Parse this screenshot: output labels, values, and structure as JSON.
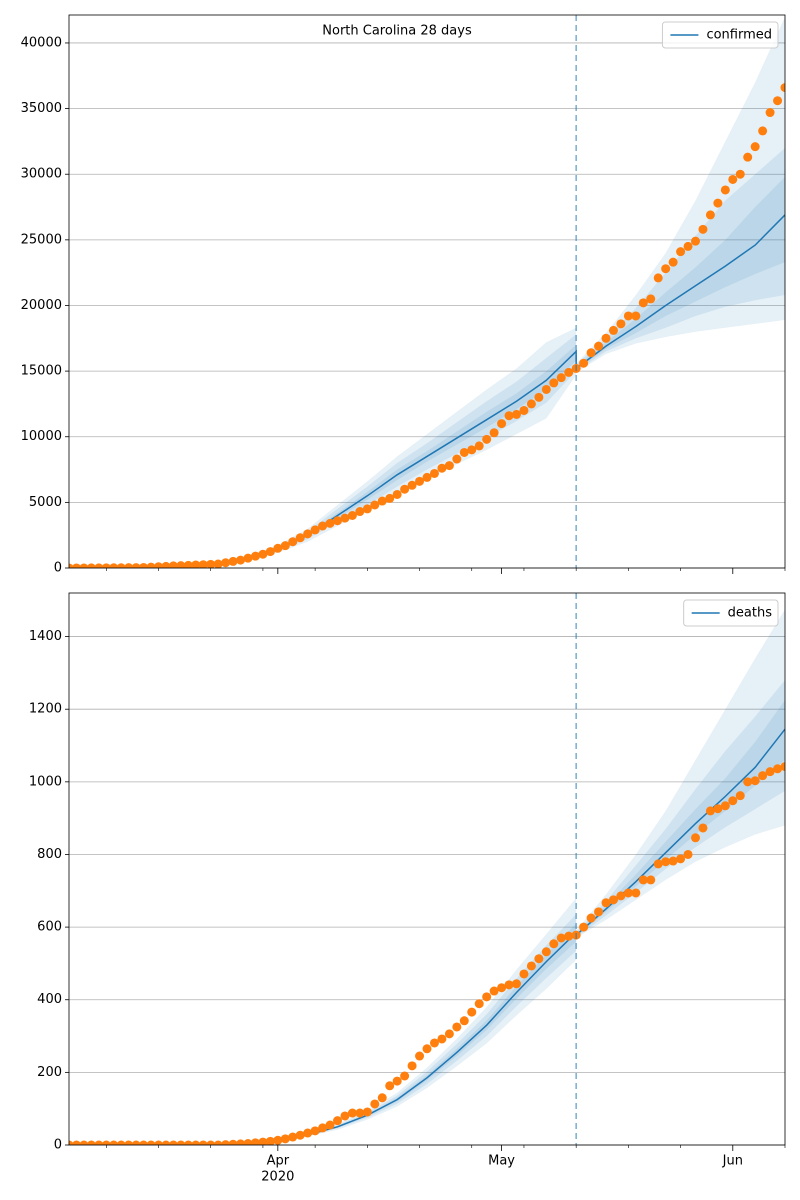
{
  "chart_data": [
    {
      "type": "line",
      "title": "North Carolina 28 days",
      "legend": "upper right",
      "grid": true,
      "xlim": [
        0,
        96
      ],
      "ylim": [
        0,
        42130
      ],
      "yticks": [
        0,
        5000,
        10000,
        15000,
        20000,
        25000,
        30000,
        35000,
        40000
      ],
      "vline": 68,
      "series": [
        {
          "name": "confirmed",
          "color": "#1f77b4",
          "x": [
            0,
            4,
            8,
            12,
            16,
            20,
            24,
            28,
            32,
            36,
            40,
            44,
            48,
            52,
            56,
            60,
            64,
            68,
            68,
            72,
            76,
            80,
            84,
            88,
            92,
            96
          ],
          "values": [
            2,
            5,
            20,
            60,
            150,
            350,
            760,
            1450,
            2500,
            4000,
            5500,
            7100,
            8500,
            9900,
            11300,
            12700,
            14300,
            16500,
            15200,
            16900,
            18400,
            20000,
            21500,
            23000,
            24600,
            26900
          ],
          "bands": [
            {
              "lower": [
                2,
                4,
                16,
                48,
                120,
                280,
                610,
                1160,
                2000,
                3200,
                4400,
                5700,
                6800,
                7900,
                9000,
                10200,
                11400,
                14700,
                14900,
                16300,
                17100,
                17600,
                18000,
                18300,
                18600,
                18900
              ],
              "upper": [
                2,
                6,
                24,
                72,
                180,
                420,
                910,
                1740,
                3000,
                4800,
                6600,
                8500,
                10200,
                11900,
                13600,
                15200,
                17200,
                18300,
                15600,
                17900,
                20800,
                24000,
                28000,
                32500,
                37000,
                42000
              ]
            },
            {
              "lower": [
                2,
                4,
                18,
                53,
                132,
                310,
                670,
                1280,
                2200,
                3500,
                4800,
                6200,
                7500,
                8700,
                9900,
                11200,
                12600,
                15000,
                15000,
                16500,
                17500,
                18300,
                19200,
                19900,
                20400,
                20800
              ],
              "upper": [
                2,
                6,
                22,
                67,
                168,
                390,
                850,
                1620,
                2800,
                4500,
                6200,
                8000,
                9500,
                11100,
                12700,
                14200,
                16000,
                17800,
                15500,
                17500,
                19800,
                22500,
                25300,
                28000,
                30000,
                32000
              ]
            },
            {
              "lower": [
                2,
                5,
                19,
                57,
                143,
                330,
                720,
                1380,
                2380,
                3800,
                5200,
                6700,
                8100,
                9400,
                10700,
                12100,
                13600,
                15800,
                15100,
                16700,
                17900,
                19200,
                20300,
                21400,
                22400,
                23300
              ],
              "upper": [
                2,
                5,
                21,
                63,
                158,
                370,
                800,
                1520,
                2630,
                4200,
                5800,
                7500,
                8900,
                10400,
                11900,
                13300,
                15000,
                17000,
                15350,
                17200,
                19000,
                21000,
                22900,
                25000,
                27500,
                29800
              ]
            }
          ]
        }
      ],
      "observed": {
        "color": "#ff7f0e",
        "x": [
          0,
          1,
          2,
          3,
          4,
          5,
          6,
          7,
          8,
          9,
          10,
          11,
          12,
          13,
          14,
          15,
          16,
          17,
          18,
          19,
          20,
          21,
          22,
          23,
          24,
          25,
          26,
          27,
          28,
          29,
          30,
          31,
          32,
          33,
          34,
          35,
          36,
          37,
          38,
          39,
          40,
          41,
          42,
          43,
          44,
          45,
          46,
          47,
          48,
          49,
          50,
          51,
          52,
          53,
          54,
          55,
          56,
          57,
          58,
          59,
          60,
          61,
          62,
          63,
          64,
          65,
          66,
          67,
          68,
          69,
          70,
          71,
          72,
          73,
          74,
          75,
          76,
          77,
          78,
          79,
          80,
          81,
          82,
          83,
          84,
          85,
          86,
          87,
          88,
          89,
          90,
          91,
          92,
          93,
          94,
          95,
          96
        ],
        "values": [
          2,
          2,
          3,
          7,
          8,
          12,
          15,
          17,
          24,
          32,
          40,
          63,
          92,
          123,
          161,
          180,
          200,
          230,
          250,
          280,
          300,
          400,
          500,
          600,
          750,
          900,
          1050,
          1250,
          1500,
          1700,
          2000,
          2300,
          2600,
          2900,
          3200,
          3400,
          3600,
          3800,
          4000,
          4300,
          4500,
          4800,
          5100,
          5300,
          5600,
          6000,
          6300,
          6600,
          6900,
          7200,
          7600,
          7800,
          8300,
          8800,
          9000,
          9300,
          9800,
          10300,
          11000,
          11600,
          11700,
          12000,
          12500,
          13000,
          13600,
          14100,
          14500,
          14900,
          15200,
          15600,
          16400,
          16900,
          17500,
          18100,
          18600,
          19200,
          19200,
          20200,
          20500,
          22100,
          22800,
          23300,
          24100,
          24500,
          24900,
          25800,
          26900,
          27800,
          28800,
          29600,
          30000,
          31300,
          32100,
          33300,
          34700,
          35600,
          36600
        ]
      }
    },
    {
      "type": "line",
      "legend": "upper right",
      "grid": true,
      "xlim": [
        0,
        96
      ],
      "ylim": [
        0,
        1520
      ],
      "yticks": [
        0,
        200,
        400,
        600,
        800,
        1000,
        1200,
        1400
      ],
      "vline": 68,
      "xticks": [
        {
          "value": 28,
          "label": "Apr",
          "sublabel": "2020"
        },
        {
          "value": 58,
          "label": "May"
        },
        {
          "value": 89,
          "label": "Jun"
        }
      ],
      "xminorticks": [
        5,
        12,
        19,
        26,
        33,
        40,
        47,
        54,
        61,
        68,
        75,
        82,
        96
      ],
      "series": [
        {
          "name": "deaths",
          "color": "#1f77b4",
          "x": [
            0,
            4,
            8,
            12,
            16,
            20,
            24,
            28,
            32,
            36,
            40,
            44,
            48,
            52,
            56,
            60,
            64,
            68,
            68,
            72,
            76,
            80,
            84,
            88,
            92,
            96
          ],
          "values": [
            0,
            0,
            0,
            0,
            0,
            1,
            4,
            12,
            28,
            50,
            82,
            125,
            185,
            255,
            330,
            420,
            505,
            585,
            578,
            650,
            725,
            805,
            885,
            960,
            1040,
            1145
          ],
          "bands": [
            {
              "lower": [
                0,
                0,
                0,
                0,
                0,
                1,
                3,
                10,
                24,
                42,
                70,
                106,
                157,
                217,
                280,
                357,
                430,
                510,
                570,
                620,
                675,
                730,
                780,
                820,
                855,
                880
              ],
              "upper": [
                0,
                0,
                0,
                0,
                0,
                1,
                5,
                14,
                32,
                58,
                94,
                144,
                213,
                293,
                380,
                483,
                581,
                680,
                590,
                690,
                800,
                920,
                1060,
                1200,
                1340,
                1475
              ]
            },
            {
              "lower": [
                0,
                0,
                0,
                0,
                0,
                1,
                4,
                11,
                25,
                46,
                75,
                114,
                168,
                232,
                300,
                382,
                460,
                535,
                572,
                632,
                695,
                760,
                820,
                875,
                925,
                975
              ],
              "upper": [
                0,
                0,
                0,
                0,
                0,
                1,
                4,
                13,
                31,
                55,
                89,
                136,
                202,
                278,
                360,
                458,
                550,
                635,
                585,
                672,
                770,
                870,
                980,
                1085,
                1180,
                1280
              ]
            },
            {
              "lower": [
                0,
                0,
                0,
                0,
                0,
                1,
                4,
                12,
                27,
                48,
                79,
                120,
                178,
                245,
                317,
                403,
                485,
                560,
                575,
                642,
                712,
                785,
                855,
                920,
                990,
                1060
              ],
              "upper": [
                0,
                0,
                0,
                0,
                0,
                1,
                4,
                12,
                29,
                52,
                85,
                130,
                192,
                265,
                343,
                437,
                525,
                610,
                582,
                660,
                745,
                835,
                925,
                1010,
                1110,
                1225
              ]
            }
          ]
        }
      ],
      "observed": {
        "color": "#ff7f0e",
        "x": [
          0,
          1,
          2,
          3,
          4,
          5,
          6,
          7,
          8,
          9,
          10,
          11,
          12,
          13,
          14,
          15,
          16,
          17,
          18,
          19,
          20,
          21,
          22,
          23,
          24,
          25,
          26,
          27,
          28,
          29,
          30,
          31,
          32,
          33,
          34,
          35,
          36,
          37,
          38,
          39,
          40,
          41,
          42,
          43,
          44,
          45,
          46,
          47,
          48,
          49,
          50,
          51,
          52,
          53,
          54,
          55,
          56,
          57,
          58,
          59,
          60,
          61,
          62,
          63,
          64,
          65,
          66,
          67,
          68,
          69,
          70,
          71,
          72,
          73,
          74,
          75,
          76,
          77,
          78,
          79,
          80,
          81,
          82,
          83,
          84,
          85,
          86,
          87,
          88,
          89,
          90,
          91,
          92,
          93,
          94,
          95,
          96
        ],
        "values": [
          0,
          0,
          0,
          0,
          0,
          0,
          0,
          0,
          0,
          0,
          0,
          0,
          0,
          0,
          0,
          0,
          0,
          0,
          0,
          0,
          0,
          1,
          2,
          3,
          4,
          6,
          8,
          10,
          13,
          17,
          22,
          27,
          33,
          39,
          47,
          55,
          67,
          80,
          88,
          88,
          91,
          113,
          130,
          163,
          176,
          190,
          218,
          245,
          265,
          281,
          292,
          306,
          325,
          342,
          366,
          389,
          408,
          424,
          433,
          441,
          444,
          471,
          493,
          513,
          532,
          554,
          570,
          575,
          578,
          600,
          625,
          642,
          667,
          675,
          686,
          694,
          694,
          730,
          730,
          774,
          780,
          782,
          788,
          800,
          846,
          873,
          920,
          926,
          934,
          948,
          962,
          1000,
          1003,
          1017,
          1028,
          1036,
          1042
        ]
      }
    }
  ]
}
